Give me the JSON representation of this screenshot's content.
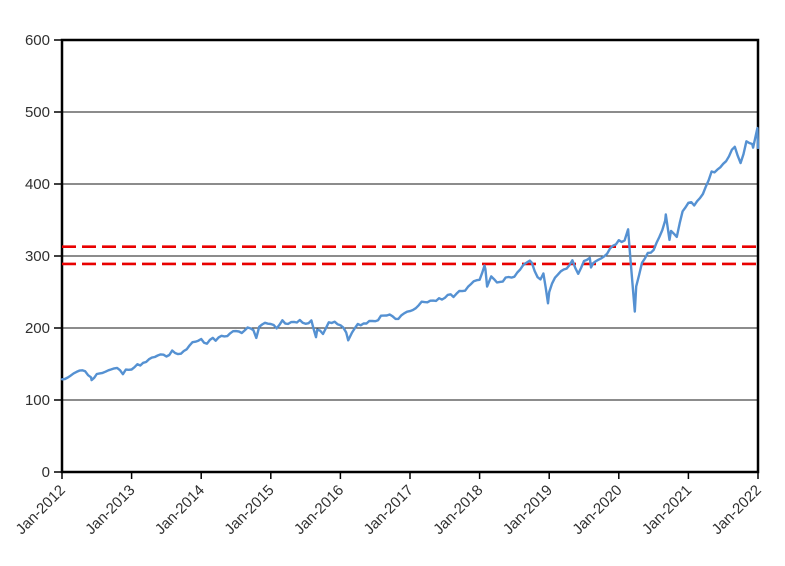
{
  "chart_data": {
    "type": "line",
    "title": "",
    "background": "#FFFFFF",
    "plot": {
      "border_color": "#000000",
      "grid_color": "#1a1a1a",
      "label_color": "#303030",
      "grid": "horizontal-only"
    },
    "x_axis": {
      "tick_labels": [
        "Jan-2012",
        "Jan-2013",
        "Jan-2014",
        "Jan-2015",
        "Jan-2016",
        "Jan-2017",
        "Jan-2018",
        "Jan-2019",
        "Jan-2020",
        "Jan-2021",
        "Jan-2022"
      ],
      "t_min": 0,
      "t_max": 120,
      "months_per_tick": 12,
      "t_unit": "months since Jan-2012",
      "label_rotation_deg": -45
    },
    "y_axis": {
      "min": 0,
      "max": 600,
      "step": 100,
      "tick_labels": [
        "0",
        "100",
        "200",
        "300",
        "400",
        "500",
        "600"
      ]
    },
    "reference_lines": [
      {
        "value": 313,
        "color": "#E80000",
        "style": "dashed"
      },
      {
        "value": 289,
        "color": "#E80000",
        "style": "dashed"
      }
    ],
    "series": [
      {
        "id": "price-series",
        "color": "#5591D2",
        "points": [
          [
            0,
            128.8
          ],
          [
            1,
            131.3
          ],
          [
            2,
            136.9
          ],
          [
            3,
            140.8
          ],
          [
            4,
            139.9
          ],
          [
            5.1,
            127.6
          ],
          [
            5,
            131.5
          ],
          [
            6,
            136.1
          ],
          [
            7,
            137.7
          ],
          [
            8,
            141.2
          ],
          [
            9,
            143.9
          ],
          [
            10,
            141.4
          ],
          [
            10.5,
            135.9
          ],
          [
            11,
            142.2
          ],
          [
            12,
            142.4
          ],
          [
            13,
            149.7
          ],
          [
            14,
            151.6
          ],
          [
            15,
            156.7
          ],
          [
            16,
            159.7
          ],
          [
            17,
            163.4
          ],
          [
            18,
            160.4
          ],
          [
            19,
            168.7
          ],
          [
            20,
            163.7
          ],
          [
            21,
            168.0
          ],
          [
            22,
            175.8
          ],
          [
            23,
            181.0
          ],
          [
            24,
            184.7
          ],
          [
            25,
            178.2
          ],
          [
            26,
            186.3
          ],
          [
            27,
            187.0
          ],
          [
            28,
            188.3
          ],
          [
            29,
            192.7
          ],
          [
            30,
            195.7
          ],
          [
            31,
            193.1
          ],
          [
            32,
            200.7
          ],
          [
            33,
            197.0
          ],
          [
            33.5,
            186.3
          ],
          [
            34,
            201.7
          ],
          [
            35,
            207.2
          ],
          [
            36,
            205.5
          ],
          [
            37,
            199.5
          ],
          [
            38,
            210.7
          ],
          [
            39,
            205.7
          ],
          [
            40,
            208.5
          ],
          [
            41,
            211.1
          ],
          [
            42,
            205.9
          ],
          [
            43,
            210.5
          ],
          [
            43.8,
            187.2
          ],
          [
            44,
            197.6
          ],
          [
            45,
            191.6
          ],
          [
            46,
            207.9
          ],
          [
            47,
            208.7
          ],
          [
            48,
            203.9
          ],
          [
            49,
            193.7
          ],
          [
            49.35,
            182.9
          ],
          [
            50,
            193.6
          ],
          [
            51,
            205.5
          ],
          [
            52,
            206.3
          ],
          [
            53,
            209.8
          ],
          [
            54,
            209.5
          ],
          [
            55,
            217.1
          ],
          [
            56,
            217.4
          ],
          [
            57,
            216.3
          ],
          [
            58,
            212.6
          ],
          [
            59,
            220.4
          ],
          [
            60,
            223.5
          ],
          [
            61,
            227.5
          ],
          [
            62,
            236.5
          ],
          [
            63,
            235.7
          ],
          [
            64,
            238.1
          ],
          [
            65,
            241.4
          ],
          [
            66,
            241.8
          ],
          [
            67,
            246.8
          ],
          [
            68,
            247.5
          ],
          [
            69,
            251.2
          ],
          [
            70,
            257.2
          ],
          [
            71,
            265.0
          ],
          [
            72,
            266.9
          ],
          [
            72.85,
            286.6
          ],
          [
            73,
            281.9
          ],
          [
            73.3,
            257.6
          ],
          [
            74,
            271.7
          ],
          [
            75,
            263.2
          ],
          [
            76,
            264.5
          ],
          [
            77,
            270.9
          ],
          [
            78,
            271.3
          ],
          [
            79,
            281.3
          ],
          [
            80,
            290.3
          ],
          [
            80.65,
            293.6
          ],
          [
            81,
            290.7
          ],
          [
            82,
            270.6
          ],
          [
            83,
            275.7
          ],
          [
            83.8,
            234.3
          ],
          [
            84,
            249.9
          ],
          [
            85,
            269.9
          ],
          [
            86,
            278.7
          ],
          [
            87,
            282.5
          ],
          [
            88,
            294.0
          ],
          [
            89,
            275.3
          ],
          [
            90,
            293.0
          ],
          [
            91,
            297.4
          ],
          [
            91.2,
            284.0
          ],
          [
            92,
            292.5
          ],
          [
            93,
            296.8
          ],
          [
            94,
            303.3
          ],
          [
            95,
            314.3
          ],
          [
            96,
            321.9
          ],
          [
            97,
            321.7
          ],
          [
            97.6,
            337.1
          ],
          [
            98,
            296.3
          ],
          [
            98.75,
            222.9
          ],
          [
            99,
            257.8
          ],
          [
            100,
            290.5
          ],
          [
            101,
            304.3
          ],
          [
            102,
            308.4
          ],
          [
            103,
            326.5
          ],
          [
            104,
            349.3
          ],
          [
            104.1,
            357.7
          ],
          [
            104.75,
            322.4
          ],
          [
            105,
            334.9
          ],
          [
            106,
            326.5
          ],
          [
            107,
            362.1
          ],
          [
            108,
            373.9
          ],
          [
            109,
            370.1
          ],
          [
            110,
            380.4
          ],
          [
            111,
            396.3
          ],
          [
            112,
            417.3
          ],
          [
            113,
            420.0
          ],
          [
            114,
            428.1
          ],
          [
            115,
            438.5
          ],
          [
            116,
            451.6
          ],
          [
            117,
            429.1
          ],
          [
            118,
            459.3
          ],
          [
            119,
            455.6
          ],
          [
            119.15,
            450.5
          ],
          [
            119.9,
            477.7
          ],
          [
            120,
            450.0
          ]
        ]
      }
    ]
  }
}
